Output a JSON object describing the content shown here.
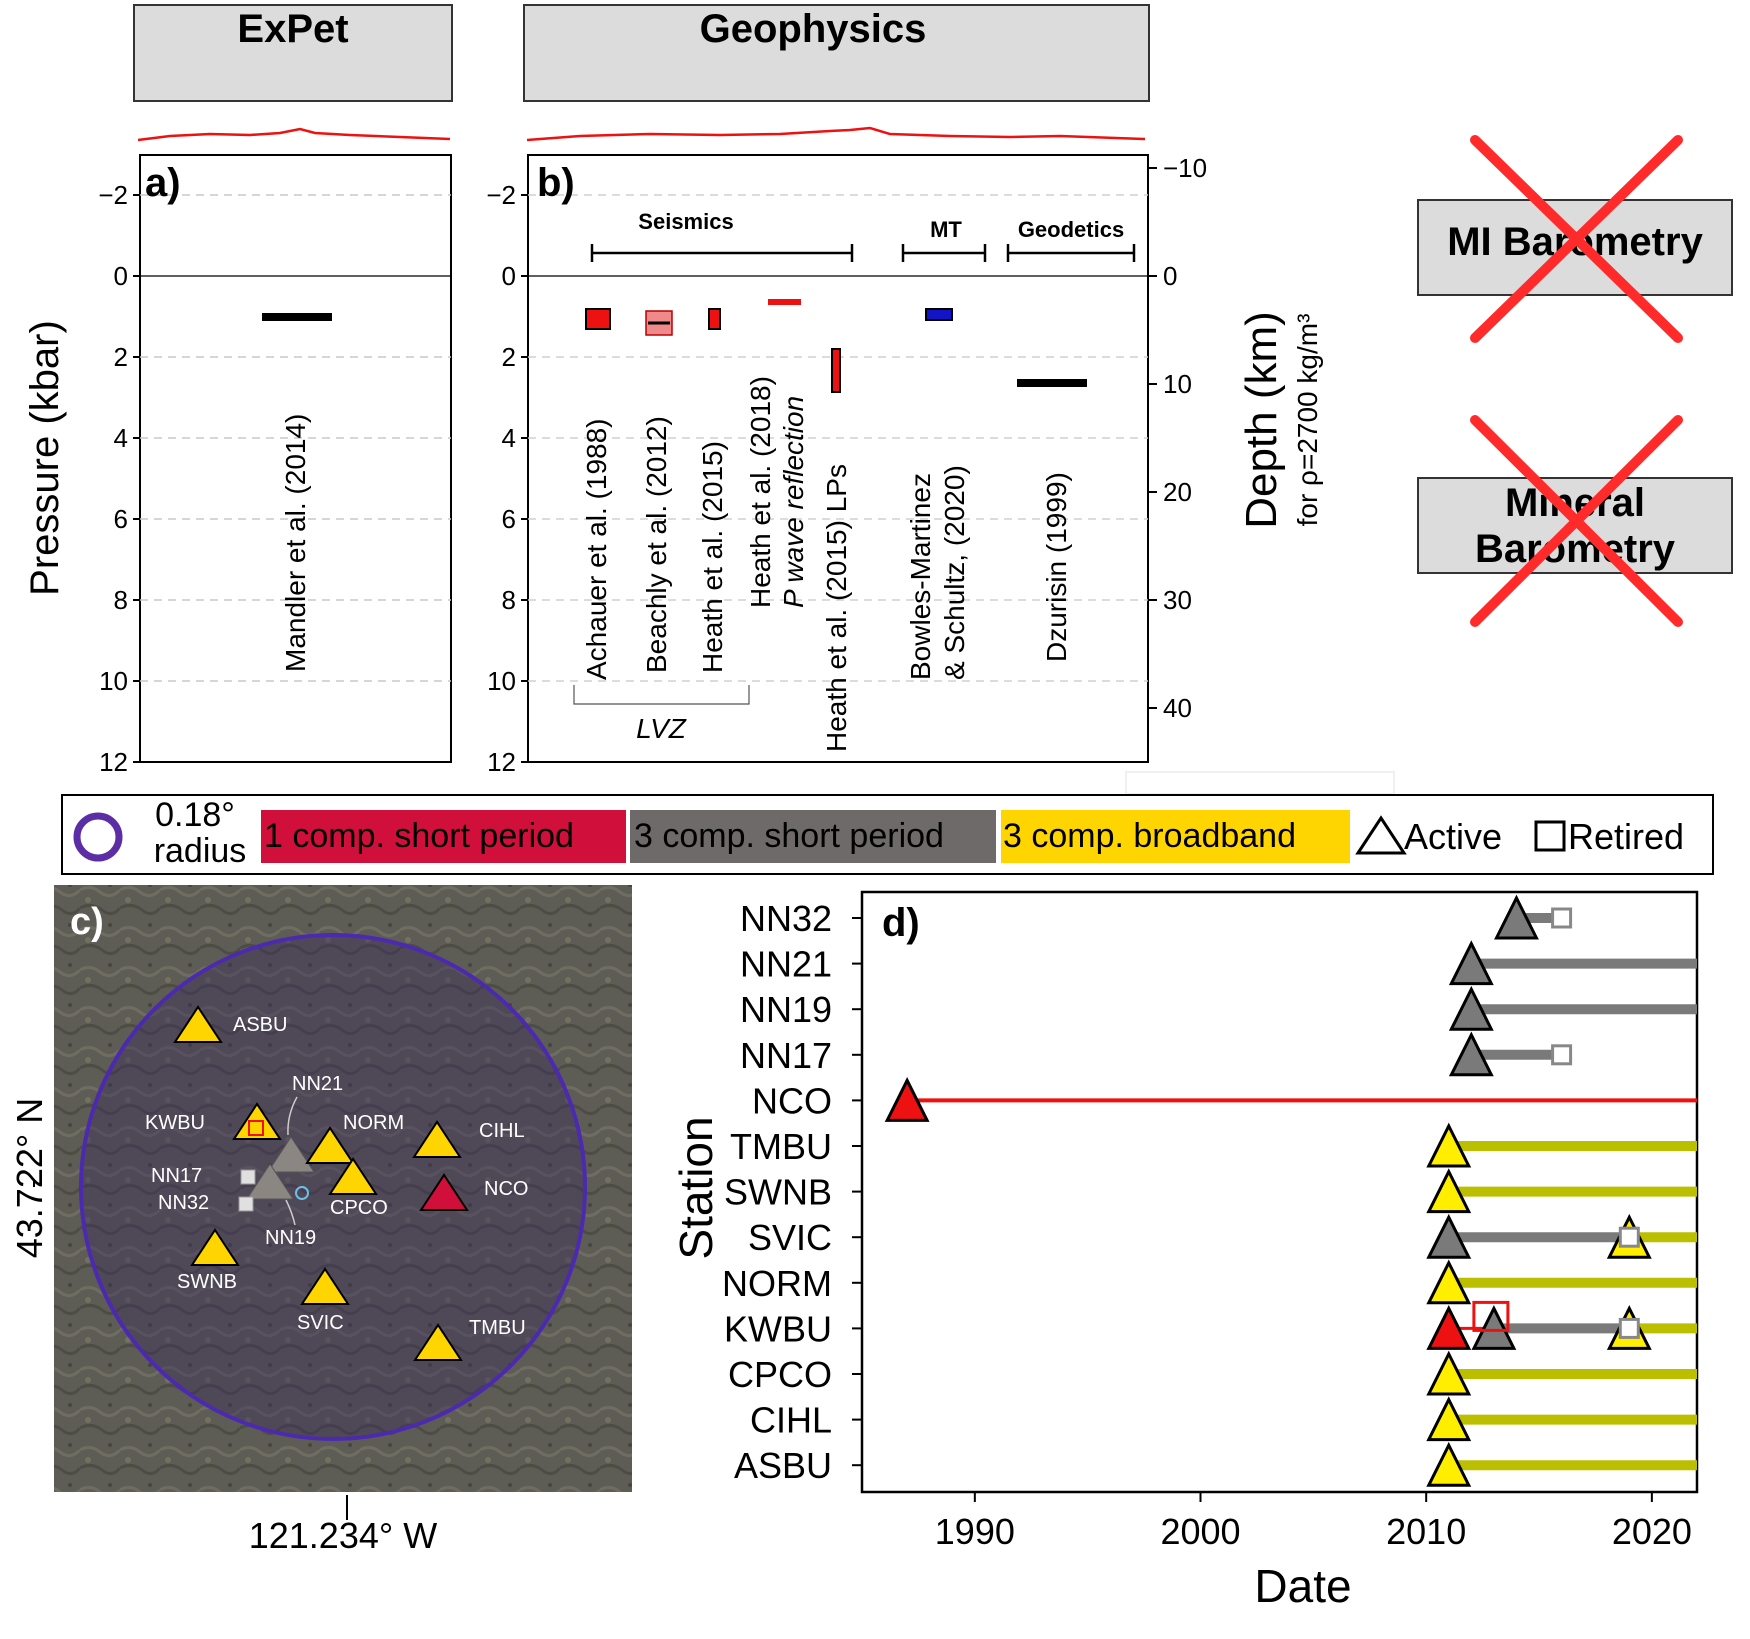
{
  "header_boxes": {
    "expet": "ExPet",
    "geophysics": "Geophysics"
  },
  "method_boxes": {
    "mi": "MI Barometry",
    "mineral_line1": "Mineral",
    "mineral_line2": "Barometry"
  },
  "colors": {
    "red": "#ee1111",
    "grey": "#7a7a7a",
    "yellow": "#ffee00",
    "olive": "#bcbf00",
    "purple": "#5b2ea6",
    "blue": "#1313c8",
    "cross_red": "#ff2b2b"
  },
  "panel_a": {
    "label": "a)",
    "ylabel": "Pressure (kbar)",
    "yticks": [
      "−2",
      "0",
      "2",
      "4",
      "6",
      "8",
      "10",
      "12"
    ],
    "bar_label": "Mandler et al. (2014)"
  },
  "panel_b": {
    "label": "b)",
    "yticks": [
      "−2",
      "0",
      "2",
      "4",
      "6",
      "8",
      "10",
      "12"
    ],
    "depth_ticks": [
      "−10",
      "0",
      "10",
      "20",
      "30",
      "40"
    ],
    "depth_label": "Depth (km)",
    "depth_sublabel": "for ρ=2700 kg/m³",
    "groups": {
      "seismics": "Seismics",
      "mt": "MT",
      "geodetics": "Geodetics"
    },
    "studies": {
      "achauer": "Achauer et al. (1988)",
      "beachly": "Beachly et al. (2012)",
      "heath2015": "Heath et al. (2015)",
      "heath2018_a": "Heath et al. (2018)",
      "heath2018_b": "P wave reflection",
      "heath_lp": "Heath et al. (2015) LPs",
      "bowles_a": "Bowles-Martinez",
      "bowles_b": "& Schultz, (2020)",
      "dzurisin": "Dzurisin (1999)"
    },
    "lvz": "LVZ"
  },
  "legend": {
    "radius_value": "0.18°",
    "radius_word": "radius",
    "one_comp": "1 comp. short period",
    "three_comp": "3 comp. short period",
    "broadband": "3 comp. broadband",
    "active": "Active",
    "retired": "Retired"
  },
  "panel_c": {
    "label": "c)",
    "lat": "43.722° N",
    "lon": "121.234° W",
    "stations": {
      "asbu": "ASBU",
      "nn21": "NN21",
      "kwbu": "KWBU",
      "norm": "NORM",
      "cihl": "CIHL",
      "nn17": "NN17",
      "nn32": "NN32",
      "cpco": "CPCO",
      "nco": "NCO",
      "nn19": "NN19",
      "swnb": "SWNB",
      "svic": "SVIC",
      "tmbu": "TMBU"
    }
  },
  "panel_d": {
    "label": "d)",
    "xlabel": "Date",
    "ylabel": "Station",
    "xticks": [
      "1990",
      "2000",
      "2010",
      "2020"
    ]
  },
  "chart_data": [
    {
      "type": "bar",
      "title": "ExPet",
      "ylabel": "Pressure (kbar)",
      "ylim": [
        12,
        -3
      ],
      "grid": "dashed horizontal",
      "bars": [
        {
          "label": "Mandler et al. (2014)",
          "pressure_kbar": 1.0
        }
      ]
    },
    {
      "type": "bar",
      "title": "Geophysics",
      "ylabel": "Pressure (kbar)",
      "ylabel_right": "Depth (km)",
      "ylim": [
        12,
        -3
      ],
      "bars": [
        {
          "label": "Achauer et al. (1988)",
          "group": "Seismics",
          "from_kbar": 0.8,
          "to_kbar": 1.3,
          "color": "red"
        },
        {
          "label": "Beachly et al. (2012)",
          "group": "Seismics",
          "from_kbar": 0.9,
          "to_kbar": 1.5,
          "color": "light red"
        },
        {
          "label": "Heath et al. (2015)",
          "group": "Seismics",
          "from_kbar": 0.8,
          "to_kbar": 1.3,
          "color": "red"
        },
        {
          "label": "Heath et al. (2018) P wave reflection",
          "group": "Seismics",
          "pressure_kbar": 0.6,
          "color": "red"
        },
        {
          "label": "Heath et al. (2015) LPs",
          "group": "Seismics",
          "from_kbar": 1.8,
          "to_kbar": 2.85,
          "color": "red"
        },
        {
          "label": "Bowles-Martinez & Schultz, (2020)",
          "group": "MT",
          "from_kbar": 0.8,
          "to_kbar": 1.05,
          "color": "blue"
        },
        {
          "label": "Dzurisin (1999)",
          "group": "Geodetics",
          "pressure_kbar": 2.6,
          "color": "black"
        }
      ],
      "bracket": {
        "label": "LVZ",
        "members": [
          "Achauer et al. (1988)",
          "Beachly et al. (2012)",
          "Heath et al. (2015)"
        ]
      }
    },
    {
      "type": "scatter",
      "xlabel": "Date",
      "ylabel": "Station",
      "xlim": [
        1985,
        2022
      ],
      "categories": [
        "ASBU",
        "CIHL",
        "CPCO",
        "KWBU",
        "NORM",
        "SVIC",
        "SWNB",
        "TMBU",
        "NCO",
        "NN17",
        "NN19",
        "NN21",
        "NN32"
      ],
      "series": [
        {
          "station": "NN32",
          "type": "3 comp. short period",
          "start": 2014,
          "end": 2016,
          "status": "Retired"
        },
        {
          "station": "NN21",
          "type": "3 comp. short period",
          "start": 2012,
          "end": 2022,
          "status": "Active"
        },
        {
          "station": "NN19",
          "type": "3 comp. short period",
          "start": 2012,
          "end": 2022,
          "status": "Active"
        },
        {
          "station": "NN17",
          "type": "3 comp. short period",
          "start": 2012,
          "end": 2016,
          "status": "Retired"
        },
        {
          "station": "NCO",
          "type": "1 comp. short period",
          "start": 1987,
          "end": 2022,
          "status": "Active"
        },
        {
          "station": "TMBU",
          "type": "3 comp. broadband",
          "start": 2011,
          "end": 2022,
          "status": "Active"
        },
        {
          "station": "SWNB",
          "type": "3 comp. broadband",
          "start": 2011,
          "end": 2022,
          "status": "Active"
        },
        {
          "station": "SVIC",
          "type": "3 comp. short period",
          "start": 2011,
          "end": 2019,
          "status": "Retired"
        },
        {
          "station": "SVIC",
          "type": "3 comp. broadband",
          "start": 2019,
          "end": 2022,
          "status": "Active"
        },
        {
          "station": "NORM",
          "type": "3 comp. broadband",
          "start": 2011,
          "end": 2022,
          "status": "Active"
        },
        {
          "station": "KWBU",
          "type": "1 comp. short period",
          "start": 2011,
          "end": 2013,
          "status": "Retired"
        },
        {
          "station": "KWBU",
          "type": "3 comp. short period",
          "start": 2013,
          "end": 2019,
          "status": "Retired"
        },
        {
          "station": "KWBU",
          "type": "3 comp. broadband",
          "start": 2019,
          "end": 2022,
          "status": "Active"
        },
        {
          "station": "CPCO",
          "type": "3 comp. broadband",
          "start": 2011,
          "end": 2022,
          "status": "Active"
        },
        {
          "station": "CIHL",
          "type": "3 comp. broadband",
          "start": 2011,
          "end": 2022,
          "status": "Active"
        },
        {
          "station": "ASBU",
          "type": "3 comp. broadband",
          "start": 2011,
          "end": 2022,
          "status": "Active"
        }
      ]
    }
  ]
}
